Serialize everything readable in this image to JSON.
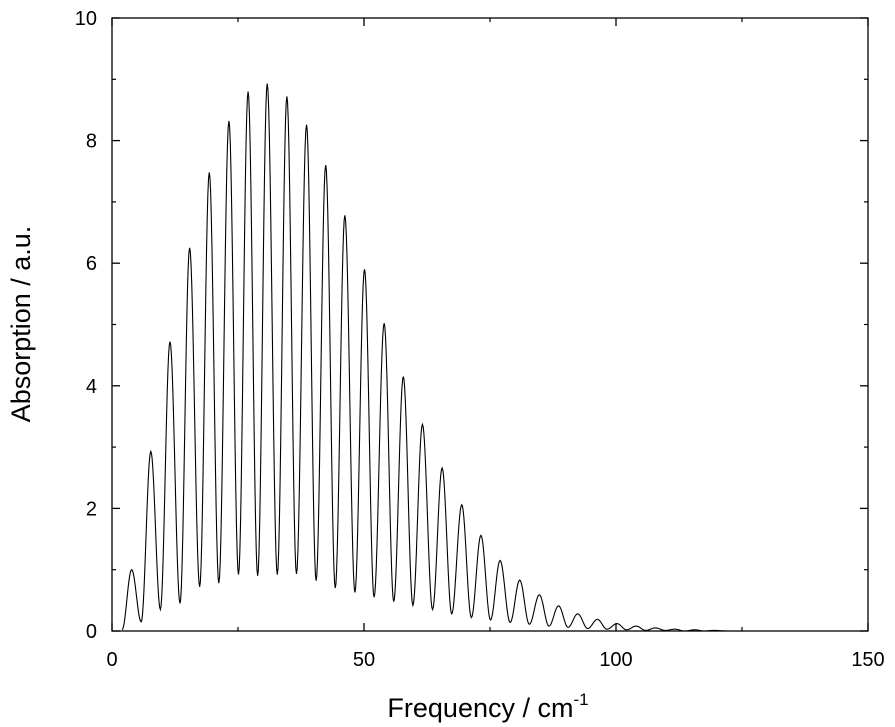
{
  "chart_data": {
    "type": "line",
    "xlabel": "Frequency / cm",
    "xlabel_superscript": "-1",
    "ylabel": "Absorption / a.u.",
    "xlim": [
      0,
      150
    ],
    "ylim": [
      0,
      10
    ],
    "xticks": [
      0,
      50,
      100,
      150
    ],
    "yticks": [
      0,
      2,
      4,
      6,
      8,
      10
    ],
    "grid": false,
    "legend": "none",
    "line_color": "#000000",
    "peak_spacing": 3.85,
    "series": [
      {
        "peaks": [
          {
            "x": 3.9,
            "y": 1.0
          },
          {
            "x": 7.7,
            "y": 2.93
          },
          {
            "x": 11.5,
            "y": 4.72
          },
          {
            "x": 15.4,
            "y": 6.25
          },
          {
            "x": 19.3,
            "y": 7.48
          },
          {
            "x": 23.2,
            "y": 8.32
          },
          {
            "x": 27.0,
            "y": 8.8
          },
          {
            "x": 30.8,
            "y": 8.93
          },
          {
            "x": 34.7,
            "y": 8.72
          },
          {
            "x": 38.6,
            "y": 8.26
          },
          {
            "x": 42.4,
            "y": 7.6
          },
          {
            "x": 46.2,
            "y": 6.78
          },
          {
            "x": 50.1,
            "y": 5.9
          },
          {
            "x": 54.0,
            "y": 5.02
          },
          {
            "x": 57.8,
            "y": 4.15
          },
          {
            "x": 61.6,
            "y": 3.37
          },
          {
            "x": 65.5,
            "y": 2.66
          },
          {
            "x": 69.4,
            "y": 2.06
          },
          {
            "x": 73.2,
            "y": 1.56
          },
          {
            "x": 77.0,
            "y": 1.15
          },
          {
            "x": 80.9,
            "y": 0.83
          },
          {
            "x": 84.8,
            "y": 0.59
          },
          {
            "x": 88.6,
            "y": 0.41
          },
          {
            "x": 92.4,
            "y": 0.28
          },
          {
            "x": 96.3,
            "y": 0.19
          },
          {
            "x": 100.2,
            "y": 0.12
          },
          {
            "x": 104.0,
            "y": 0.08
          },
          {
            "x": 107.8,
            "y": 0.05
          },
          {
            "x": 111.7,
            "y": 0.03
          },
          {
            "x": 115.6,
            "y": 0.02
          },
          {
            "x": 119.4,
            "y": 0.01
          }
        ],
        "troughs": [
          {
            "x": 5.8,
            "y": 0.15
          },
          {
            "x": 9.6,
            "y": 0.35
          },
          {
            "x": 13.5,
            "y": 0.45
          },
          {
            "x": 17.4,
            "y": 0.72
          },
          {
            "x": 21.2,
            "y": 0.78
          },
          {
            "x": 25.1,
            "y": 0.92
          },
          {
            "x": 28.9,
            "y": 0.9
          },
          {
            "x": 32.8,
            "y": 0.92
          },
          {
            "x": 36.6,
            "y": 0.93
          },
          {
            "x": 40.5,
            "y": 0.82
          },
          {
            "x": 44.3,
            "y": 0.7
          },
          {
            "x": 48.2,
            "y": 0.63
          },
          {
            "x": 52.0,
            "y": 0.55
          },
          {
            "x": 55.9,
            "y": 0.48
          },
          {
            "x": 59.7,
            "y": 0.42
          },
          {
            "x": 63.6,
            "y": 0.35
          },
          {
            "x": 67.4,
            "y": 0.28
          },
          {
            "x": 71.3,
            "y": 0.22
          },
          {
            "x": 75.1,
            "y": 0.18
          },
          {
            "x": 79.0,
            "y": 0.14
          },
          {
            "x": 82.8,
            "y": 0.11
          },
          {
            "x": 86.7,
            "y": 0.08
          },
          {
            "x": 90.5,
            "y": 0.06
          },
          {
            "x": 94.4,
            "y": 0.04
          },
          {
            "x": 98.2,
            "y": 0.03
          },
          {
            "x": 102.1,
            "y": 0.02
          },
          {
            "x": 105.9,
            "y": 0.01
          },
          {
            "x": 109.8,
            "y": 0.01
          },
          {
            "x": 113.6,
            "y": 0.0
          },
          {
            "x": 117.5,
            "y": 0.0
          }
        ],
        "start": {
          "x": 2.0,
          "y": 0.02
        },
        "end": {
          "x": 122.0,
          "y": 0.0
        }
      }
    ]
  }
}
